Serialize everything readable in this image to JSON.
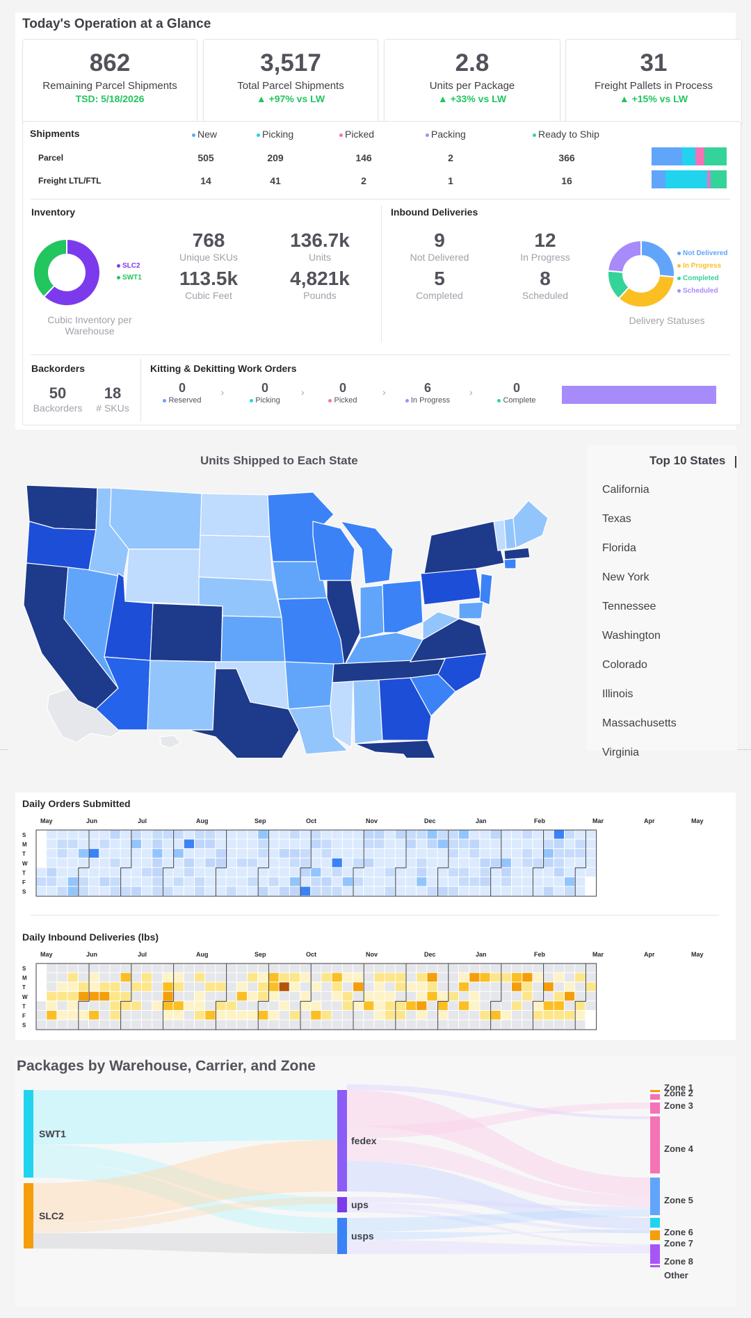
{
  "header": {
    "title": "Today's Operation at a Glance"
  },
  "kpis": [
    {
      "value": "862",
      "label": "Remaining Parcel Shipments",
      "sub": "TSD: 5/18/2026"
    },
    {
      "value": "3,517",
      "label": "Total Parcel Shipments",
      "sub": "▲ +97% vs LW"
    },
    {
      "value": "2.8",
      "label": "Units per Package",
      "sub": "▲ +33% vs LW"
    },
    {
      "value": "31",
      "label": "Freight Pallets in Process",
      "sub": "▲ +15% vs LW"
    }
  ],
  "shipments": {
    "title": "Shipments",
    "columns": [
      {
        "label": "New",
        "color": "#60a5fa"
      },
      {
        "label": "Picking",
        "color": "#22d3ee"
      },
      {
        "label": "Picked",
        "color": "#f472b6"
      },
      {
        "label": "Packing",
        "color": "#a78bfa"
      },
      {
        "label": "Ready to Ship",
        "color": "#34d399"
      }
    ],
    "rows": [
      {
        "label": "Parcel",
        "values": [
          "505",
          "209",
          "146",
          "2",
          "366"
        ],
        "nums": [
          505,
          209,
          146,
          2,
          366
        ]
      },
      {
        "label": "Freight LTL/FTL",
        "values": [
          "14",
          "41",
          "2",
          "1",
          "16"
        ],
        "nums": [
          14,
          41,
          2,
          1,
          16
        ]
      }
    ]
  },
  "inventory": {
    "title": "Inventory",
    "donut": [
      {
        "label": "SLC2",
        "value": 62,
        "color": "#7c3aed"
      },
      {
        "label": "SWT1",
        "value": 38,
        "color": "#22c55e"
      }
    ],
    "caption": "Cubic Inventory per Warehouse",
    "stats": [
      {
        "value": "768",
        "label": "Unique SKUs"
      },
      {
        "value": "136.7k",
        "label": "Units"
      },
      {
        "value": "113.5k",
        "label": "Cubic Feet"
      },
      {
        "value": "4,821k",
        "label": "Pounds"
      }
    ]
  },
  "inbound": {
    "title": "Inbound Deliveries",
    "stats": [
      {
        "value": "9",
        "label": "Not Delivered"
      },
      {
        "value": "12",
        "label": "In Progress"
      },
      {
        "value": "5",
        "label": "Completed"
      },
      {
        "value": "8",
        "label": "Scheduled"
      }
    ],
    "donut": [
      {
        "label": "Not Delivered",
        "value": 9,
        "color": "#60a5fa"
      },
      {
        "label": "In Progress",
        "value": 12,
        "color": "#fbbf24"
      },
      {
        "label": "Completed",
        "value": 5,
        "color": "#34d399"
      },
      {
        "label": "Scheduled",
        "value": 8,
        "color": "#a78bfa"
      }
    ],
    "caption": "Delivery Statuses"
  },
  "backorders": {
    "title": "Backorders",
    "count": "50",
    "count_label": "Backorders",
    "skus": "18",
    "skus_label": "# SKUs"
  },
  "kitting": {
    "title": "Kitting & Dekitting Work Orders",
    "steps": [
      {
        "value": "0",
        "label": "Reserved",
        "color": "#60a5fa"
      },
      {
        "value": "0",
        "label": "Picking",
        "color": "#22d3ee"
      },
      {
        "value": "0",
        "label": "Picked",
        "color": "#f472b6"
      },
      {
        "value": "6",
        "label": "In Progress",
        "color": "#a78bfa"
      },
      {
        "value": "0",
        "label": "Complete",
        "color": "#34d399"
      }
    ],
    "bar_color": "#a78bfa"
  },
  "map": {
    "title": "Units Shipped to Each State",
    "top_title": "Top 10 States",
    "top_states": [
      "California",
      "Texas",
      "Florida",
      "New York",
      "Tennessee",
      "Washington",
      "Colorado",
      "Illinois",
      "Massachusetts",
      "Virginia"
    ]
  },
  "calendar1": {
    "title": "Daily Orders Submitted",
    "months": [
      "May",
      "Jun",
      "Jul",
      "Aug",
      "Sep",
      "Oct",
      "Nov",
      "Dec",
      "Jan",
      "Feb",
      "Mar",
      "Apr",
      "May"
    ],
    "days": [
      "S",
      "M",
      "T",
      "W",
      "T",
      "F",
      "S"
    ]
  },
  "calendar2": {
    "title": "Daily Inbound Deliveries (lbs)",
    "months": [
      "May",
      "Jun",
      "Jul",
      "Aug",
      "Sep",
      "Oct",
      "Nov",
      "Dec",
      "Jan",
      "Feb",
      "Mar",
      "Apr",
      "May"
    ],
    "days": [
      "S",
      "M",
      "T",
      "W",
      "T",
      "F",
      "S"
    ]
  },
  "sankey": {
    "title": "Packages by Warehouse, Carrier, and Zone",
    "warehouses": [
      {
        "label": "SWT1",
        "color": "#22d3ee"
      },
      {
        "label": "SLC2",
        "color": "#f59e0b"
      }
    ],
    "carriers": [
      {
        "label": "fedex",
        "color": "#8b5cf6"
      },
      {
        "label": "ups",
        "color": "#7c3aed"
      },
      {
        "label": "usps",
        "color": "#3b82f6"
      }
    ],
    "zones": [
      {
        "label": "Zone 1",
        "color": "#f59e0b"
      },
      {
        "label": "Zone 2",
        "color": "#f472b6"
      },
      {
        "label": "Zone 3",
        "color": "#f472b6"
      },
      {
        "label": "Zone 4",
        "color": "#f472b6"
      },
      {
        "label": "Zone 5",
        "color": "#60a5fa"
      },
      {
        "label": "Zone 6",
        "color": "#22d3ee"
      },
      {
        "label": "Zone 7",
        "color": "#f59e0b"
      },
      {
        "label": "Zone 8",
        "color": "#a855f7"
      },
      {
        "label": "Other",
        "color": "#a855f7"
      }
    ]
  }
}
